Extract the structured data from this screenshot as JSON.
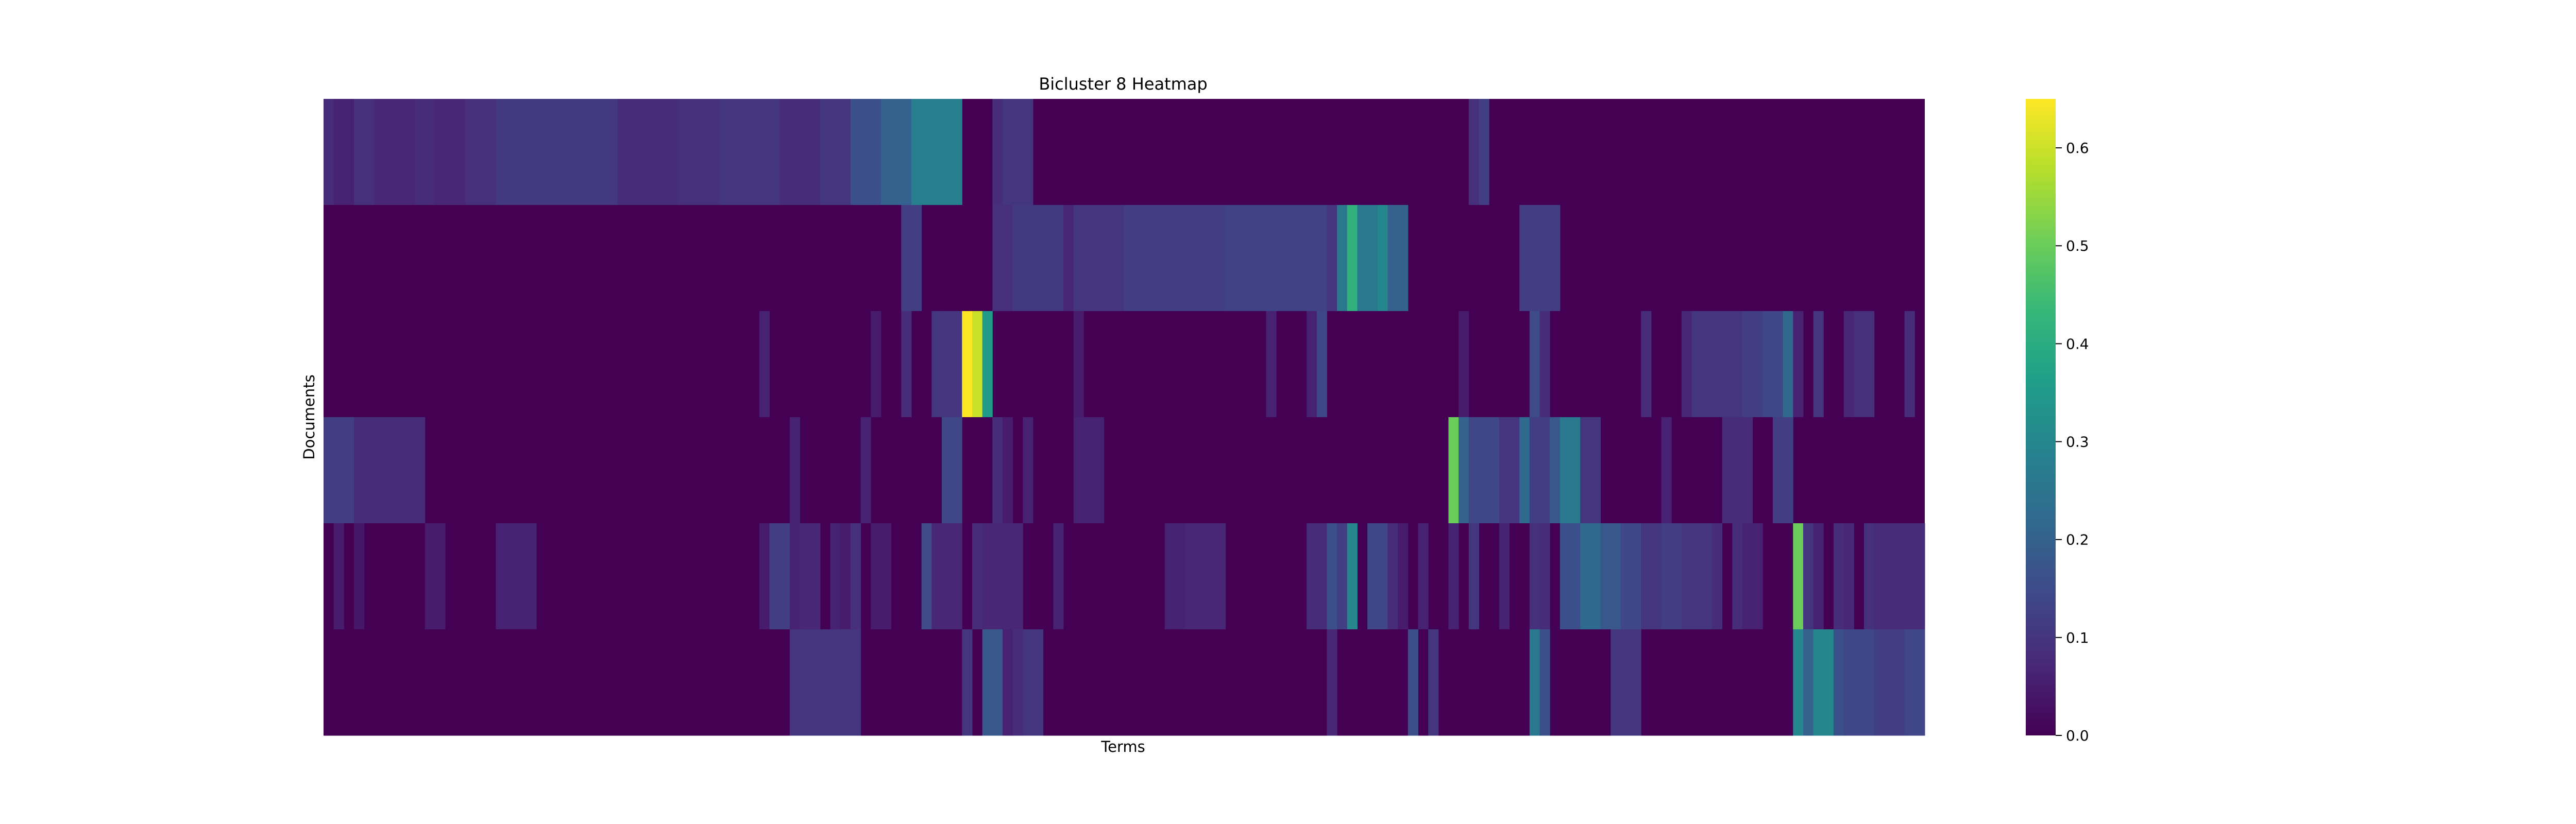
{
  "chart_data": {
    "type": "heatmap",
    "title": "Bicluster 8 Heatmap",
    "xlabel": "Terms",
    "ylabel": "Documents",
    "colormap": "viridis",
    "colormap_stops": [
      "#440154",
      "#482878",
      "#3e4989",
      "#31688e",
      "#26828e",
      "#1f9e89",
      "#35b779",
      "#6ece58",
      "#b5de2b",
      "#fde725"
    ],
    "value_range": [
      0.0,
      0.65
    ],
    "colorbar": {
      "ticks": [
        0.0,
        0.1,
        0.2,
        0.3,
        0.4,
        0.5,
        0.6
      ],
      "tick_labels": [
        "0.0",
        "0.1",
        "0.2",
        "0.3",
        "0.4",
        "0.5",
        "0.6"
      ]
    },
    "x_tick_labels": [],
    "y_tick_labels": [],
    "n_columns": 158,
    "rows": [
      {
        "background": 0.0,
        "segments": [
          [
            0,
            1,
            0.08
          ],
          [
            1,
            3,
            0.06
          ],
          [
            3,
            5,
            0.09
          ],
          [
            5,
            9,
            0.07
          ],
          [
            9,
            11,
            0.08
          ],
          [
            11,
            14,
            0.07
          ],
          [
            14,
            17,
            0.09
          ],
          [
            17,
            29,
            0.11
          ],
          [
            29,
            35,
            0.08
          ],
          [
            35,
            39,
            0.09
          ],
          [
            39,
            45,
            0.1
          ],
          [
            45,
            49,
            0.08
          ],
          [
            49,
            52,
            0.1
          ],
          [
            52,
            55,
            0.16
          ],
          [
            55,
            58,
            0.2
          ],
          [
            58,
            63,
            0.28
          ],
          [
            66,
            67,
            0.08
          ],
          [
            67,
            70,
            0.1
          ],
          [
            113,
            114,
            0.09
          ],
          [
            114,
            115,
            0.12
          ]
        ]
      },
      {
        "background": 0.0,
        "segments": [
          [
            57,
            59,
            0.12
          ],
          [
            66,
            68,
            0.09
          ],
          [
            68,
            73,
            0.11
          ],
          [
            73,
            74,
            0.07
          ],
          [
            74,
            79,
            0.1
          ],
          [
            79,
            89,
            0.12
          ],
          [
            89,
            99,
            0.13
          ],
          [
            99,
            100,
            0.1
          ],
          [
            100,
            101,
            0.26
          ],
          [
            101,
            102,
            0.42
          ],
          [
            102,
            104,
            0.26
          ],
          [
            104,
            105,
            0.3
          ],
          [
            105,
            107,
            0.2
          ],
          [
            118,
            122,
            0.12
          ]
        ]
      },
      {
        "background": 0.0,
        "segments": [
          [
            43,
            44,
            0.06
          ],
          [
            54,
            55,
            0.05
          ],
          [
            57,
            58,
            0.08
          ],
          [
            60,
            61,
            0.1
          ],
          [
            61,
            63,
            0.1
          ],
          [
            63,
            64,
            0.65
          ],
          [
            64,
            65,
            0.6
          ],
          [
            65,
            66,
            0.35
          ],
          [
            74,
            75,
            0.05
          ],
          [
            93,
            94,
            0.06
          ],
          [
            97,
            98,
            0.06
          ],
          [
            98,
            99,
            0.14
          ],
          [
            112,
            113,
            0.05
          ],
          [
            119,
            120,
            0.15
          ],
          [
            120,
            121,
            0.08
          ],
          [
            130,
            131,
            0.08
          ],
          [
            134,
            135,
            0.07
          ],
          [
            135,
            140,
            0.1
          ],
          [
            140,
            142,
            0.12
          ],
          [
            142,
            144,
            0.14
          ],
          [
            144,
            145,
            0.22
          ],
          [
            145,
            146,
            0.06
          ],
          [
            147,
            148,
            0.1
          ],
          [
            150,
            151,
            0.07
          ],
          [
            151,
            153,
            0.09
          ],
          [
            156,
            157,
            0.08
          ]
        ]
      },
      {
        "background": 0.0,
        "segments": [
          [
            0,
            3,
            0.12
          ],
          [
            3,
            10,
            0.08
          ],
          [
            46,
            47,
            0.06
          ],
          [
            53,
            54,
            0.06
          ],
          [
            61,
            63,
            0.14
          ],
          [
            66,
            67,
            0.08
          ],
          [
            67,
            68,
            0.05
          ],
          [
            69,
            70,
            0.06
          ],
          [
            74,
            77,
            0.06
          ],
          [
            111,
            112,
            0.5
          ],
          [
            112,
            113,
            0.2
          ],
          [
            113,
            116,
            0.14
          ],
          [
            116,
            118,
            0.1
          ],
          [
            118,
            119,
            0.22
          ],
          [
            119,
            121,
            0.12
          ],
          [
            121,
            122,
            0.18
          ],
          [
            122,
            124,
            0.26
          ],
          [
            124,
            126,
            0.1
          ],
          [
            132,
            133,
            0.06
          ],
          [
            138,
            141,
            0.08
          ],
          [
            143,
            145,
            0.12
          ]
        ]
      },
      {
        "background": 0.0,
        "segments": [
          [
            1,
            2,
            0.05
          ],
          [
            3,
            4,
            0.04
          ],
          [
            10,
            12,
            0.05
          ],
          [
            17,
            21,
            0.06
          ],
          [
            43,
            44,
            0.05
          ],
          [
            44,
            46,
            0.12
          ],
          [
            46,
            47,
            0.06
          ],
          [
            47,
            49,
            0.07
          ],
          [
            50,
            51,
            0.06
          ],
          [
            51,
            52,
            0.05
          ],
          [
            52,
            53,
            0.09
          ],
          [
            54,
            56,
            0.05
          ],
          [
            59,
            60,
            0.15
          ],
          [
            60,
            63,
            0.07
          ],
          [
            64,
            65,
            0.08
          ],
          [
            65,
            69,
            0.07
          ],
          [
            72,
            73,
            0.06
          ],
          [
            83,
            85,
            0.06
          ],
          [
            85,
            89,
            0.07
          ],
          [
            97,
            99,
            0.08
          ],
          [
            99,
            100,
            0.16
          ],
          [
            100,
            101,
            0.12
          ],
          [
            101,
            102,
            0.3
          ],
          [
            103,
            105,
            0.14
          ],
          [
            105,
            106,
            0.08
          ],
          [
            106,
            107,
            0.05
          ],
          [
            108,
            109,
            0.06
          ],
          [
            111,
            112,
            0.06
          ],
          [
            113,
            114,
            0.1
          ],
          [
            116,
            117,
            0.06
          ],
          [
            119,
            120,
            0.09
          ],
          [
            120,
            121,
            0.08
          ],
          [
            122,
            124,
            0.16
          ],
          [
            124,
            126,
            0.22
          ],
          [
            126,
            128,
            0.18
          ],
          [
            128,
            130,
            0.14
          ],
          [
            130,
            132,
            0.1
          ],
          [
            132,
            134,
            0.12
          ],
          [
            134,
            135,
            0.1
          ],
          [
            135,
            137,
            0.1
          ],
          [
            137,
            138,
            0.08
          ],
          [
            139,
            140,
            0.08
          ],
          [
            140,
            142,
            0.06
          ],
          [
            145,
            146,
            0.5
          ],
          [
            146,
            147,
            0.1
          ],
          [
            147,
            148,
            0.06
          ],
          [
            149,
            150,
            0.08
          ],
          [
            150,
            151,
            0.07
          ],
          [
            152,
            153,
            0.09
          ],
          [
            153,
            158,
            0.08
          ]
        ]
      },
      {
        "background": 0.0,
        "segments": [
          [
            46,
            53,
            0.1
          ],
          [
            63,
            64,
            0.1
          ],
          [
            65,
            67,
            0.18
          ],
          [
            67,
            68,
            0.06
          ],
          [
            68,
            69,
            0.08
          ],
          [
            69,
            71,
            0.1
          ],
          [
            99,
            100,
            0.07
          ],
          [
            107,
            108,
            0.16
          ],
          [
            109,
            110,
            0.1
          ],
          [
            119,
            120,
            0.26
          ],
          [
            120,
            121,
            0.16
          ],
          [
            127,
            130,
            0.1
          ],
          [
            145,
            146,
            0.3
          ],
          [
            146,
            147,
            0.2
          ],
          [
            147,
            149,
            0.3
          ],
          [
            149,
            150,
            0.16
          ],
          [
            150,
            153,
            0.14
          ],
          [
            153,
            156,
            0.12
          ],
          [
            156,
            158,
            0.14
          ]
        ]
      }
    ]
  }
}
